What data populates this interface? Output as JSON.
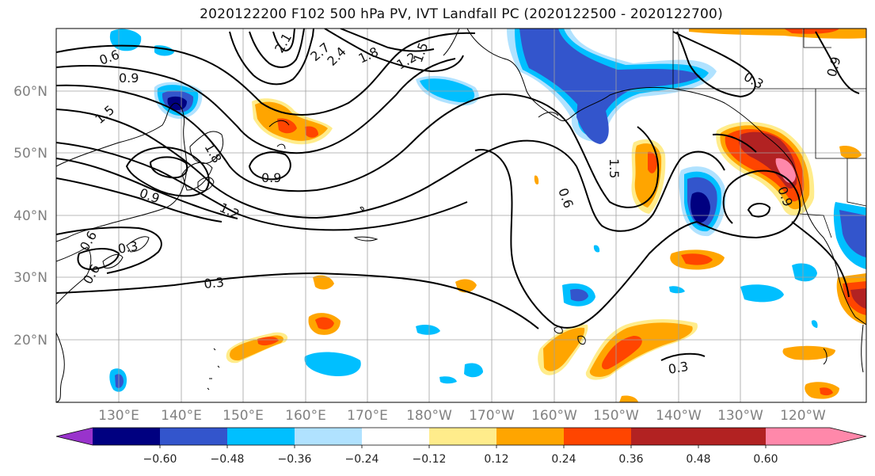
{
  "title": "2020122200 F102 500 hPa PV, IVT Landfall PC (2020122500 - 2020122700)",
  "lat_labels": [
    "60°N",
    "50°N",
    "40°N",
    "30°N",
    "20°N"
  ],
  "lon_labels": [
    "130°E",
    "140°E",
    "150°E",
    "160°E",
    "170°E",
    "180°W",
    "170°W",
    "160°W",
    "150°W",
    "140°W",
    "130°W",
    "120°W"
  ],
  "colorbar": {
    "ticks": [
      "−0.60",
      "−0.48",
      "−0.36",
      "−0.24",
      "−0.12",
      "0.12",
      "0.24",
      "0.36",
      "0.48",
      "0.60"
    ],
    "colors": [
      "#9933cc",
      "#000080",
      "#3355cc",
      "#00bfff",
      "#b0e2ff",
      "#ffffff",
      "#ffec8b",
      "#ffa500",
      "#ff4500",
      "#b22222",
      "#ff88aa"
    ]
  },
  "contour_labels": [
    "0.6",
    "0.9",
    "1.5",
    "2.1",
    "2.7",
    "2.4",
    "1.8",
    "1.2",
    "1.5",
    "0.9",
    "0.9",
    "1.8",
    "1.2",
    "0.3",
    "0.6",
    "1.5",
    "0.6",
    "0.3",
    "0.9",
    "0.9",
    "0.3",
    "0.6",
    "0.3"
  ]
}
